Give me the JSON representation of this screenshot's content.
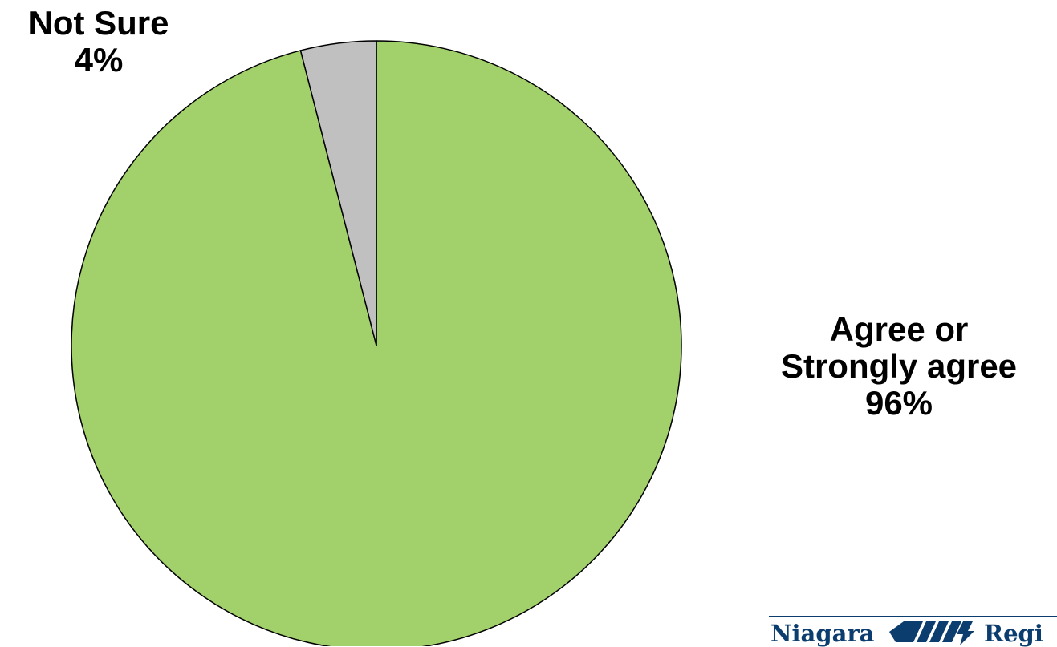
{
  "chart_data": {
    "type": "pie",
    "title": "",
    "start_angle_deg": 0,
    "direction": "clockwise",
    "slices": [
      {
        "label": "Agree or Strongly agree",
        "value": 96,
        "value_label": "96%",
        "color": "#a2d06b"
      },
      {
        "label": "Not Sure",
        "value": 4,
        "value_label": "4%",
        "color": "#c0c0c0"
      }
    ],
    "edge_color": "#000000"
  },
  "labels": {
    "agree_line1": "Agree or",
    "agree_line2": "Strongly agree",
    "agree_pct": "96%",
    "not_sure": "Not Sure",
    "not_sure_pct": "4%"
  },
  "logo": {
    "left_word": "Niagara",
    "right_word": "Regi",
    "color": "#0b3d6e"
  }
}
